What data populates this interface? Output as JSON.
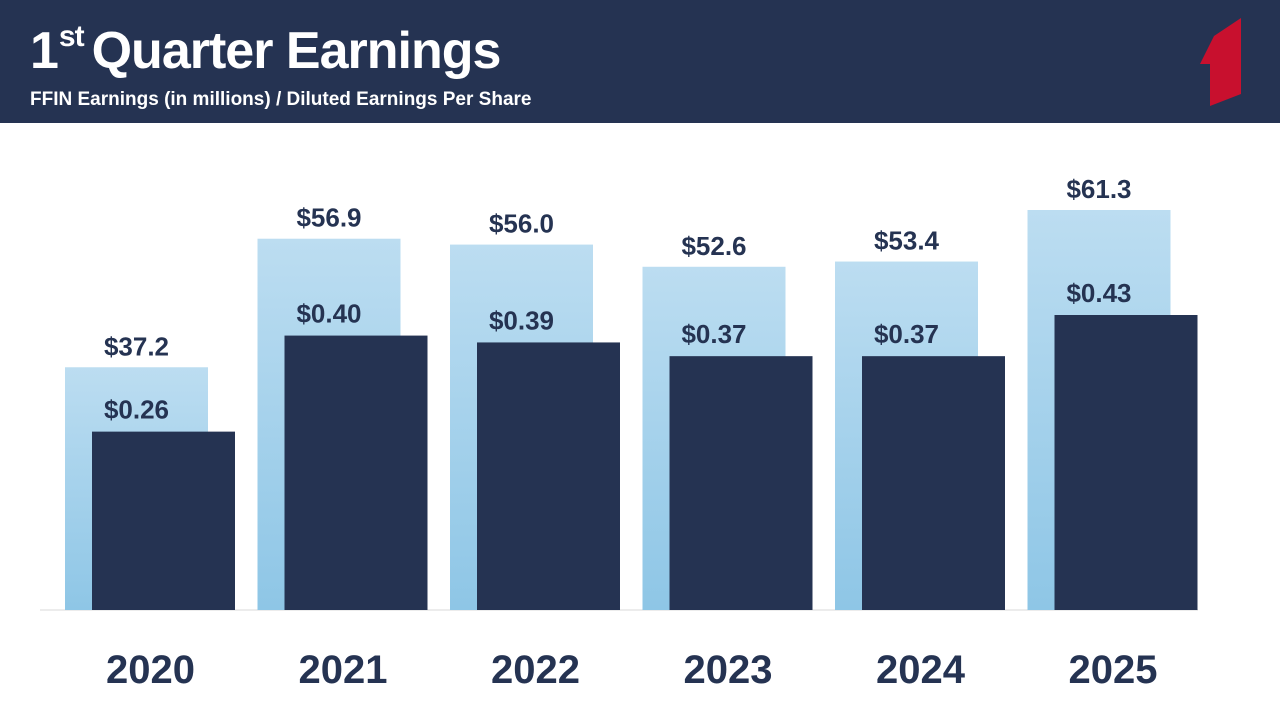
{
  "header": {
    "title_main": "1",
    "title_sup": "st",
    "title_rest": "Quarter Earnings",
    "subtitle": "FFIN Earnings (in millions) / Diluted Earnings Per Share"
  },
  "colors": {
    "header_bg": "#253352",
    "earnings_bar_top": "#BCDDF1",
    "earnings_bar_bottom": "#8EC6E6",
    "eps_bar": "#253352",
    "logo": "#C8102E"
  },
  "logo": {
    "icon": "brand-logo-icon"
  },
  "chart_data": {
    "type": "bar",
    "categories": [
      "2020",
      "2021",
      "2022",
      "2023",
      "2024",
      "2025"
    ],
    "series": [
      {
        "name": "FFIN Earnings (in millions)",
        "values": [
          37.2,
          56.9,
          56.0,
          52.6,
          53.4,
          61.3
        ],
        "labels": [
          "$37.2",
          "$56.9",
          "$56.0",
          "$52.6",
          "$53.4",
          "$61.3"
        ]
      },
      {
        "name": "Diluted Earnings Per Share",
        "values": [
          0.26,
          0.4,
          0.39,
          0.37,
          0.37,
          0.43
        ],
        "labels": [
          "$0.26",
          "$0.40",
          "$0.39",
          "$0.37",
          "$0.37",
          "$0.43"
        ]
      }
    ],
    "xlabel": "",
    "ylabel": "",
    "grid": false
  }
}
